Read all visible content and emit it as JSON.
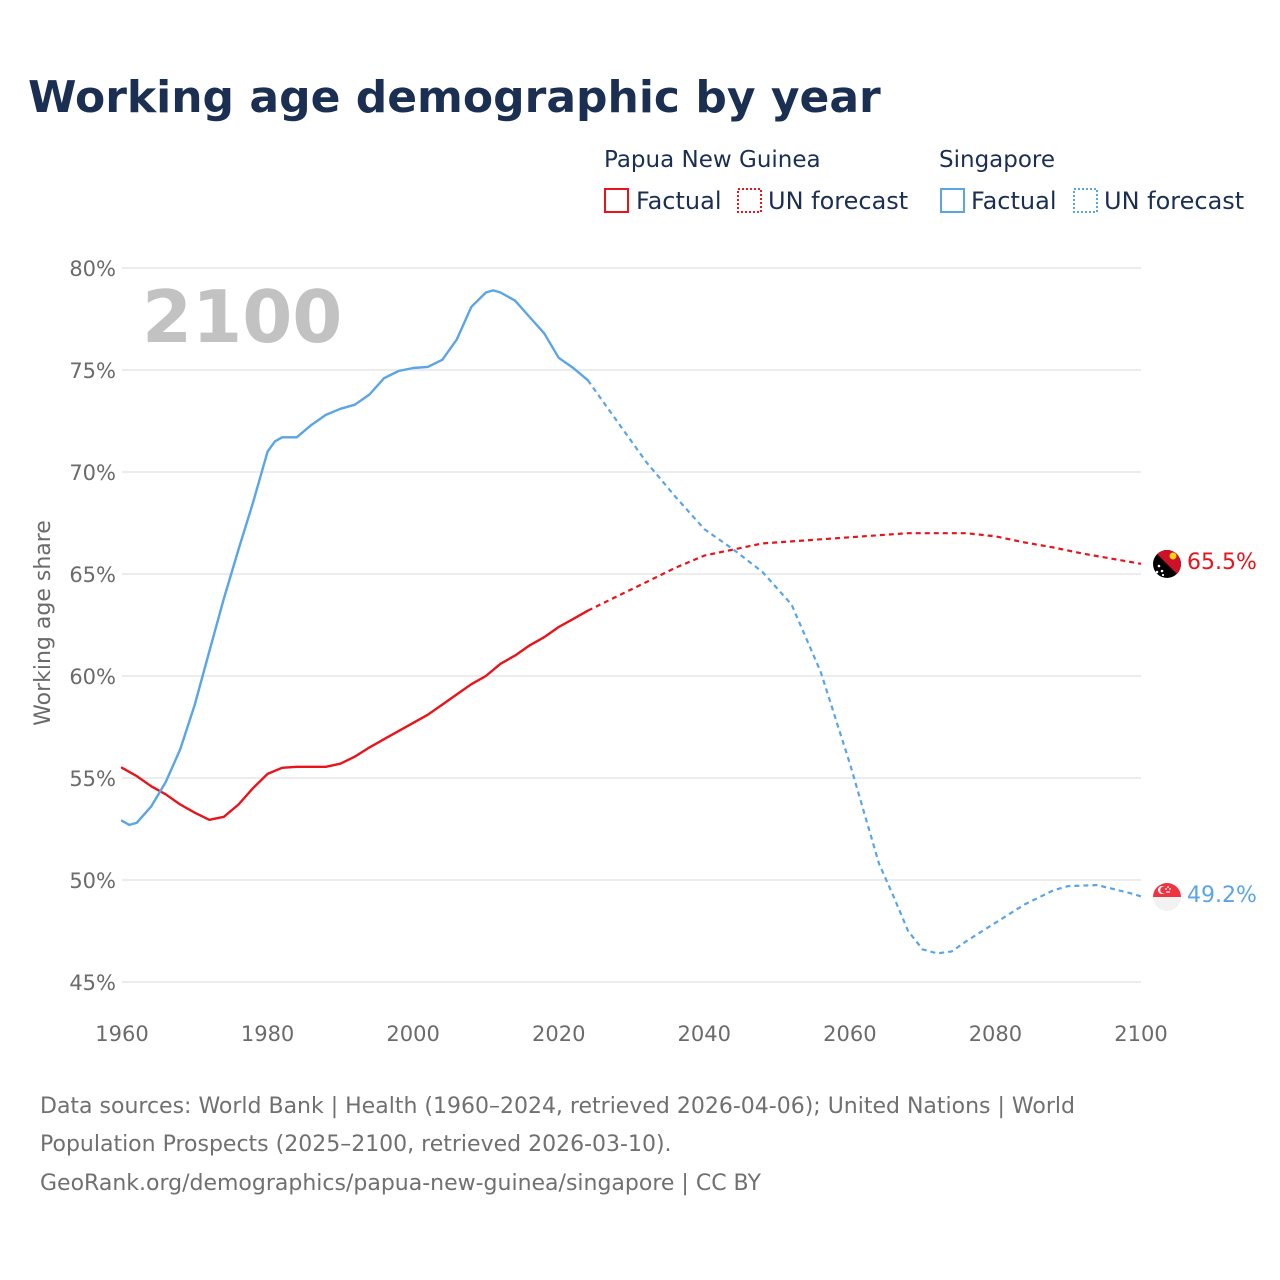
{
  "colors": {
    "png": "#e8141a",
    "sgp": "#5aa5e6",
    "title": "#1b2f52",
    "grid": "#e6e6e6"
  },
  "chart_data": {
    "type": "line",
    "title": "Working age demographic by year",
    "ylabel": "Working age share",
    "xlabel": "",
    "xlim": [
      1960,
      2100
    ],
    "ylim": [
      45,
      80
    ],
    "x_ticks": [
      "1960",
      "1980",
      "2000",
      "2020",
      "2040",
      "2060",
      "2080",
      "2100"
    ],
    "y_ticks": [
      "45%",
      "50%",
      "55%",
      "60%",
      "65%",
      "70%",
      "75%",
      "80%"
    ],
    "year_watermark": "2100",
    "legend": {
      "groups": [
        {
          "name": "Papua New Guinea",
          "factual": "Factual",
          "forecast": "UN forecast"
        },
        {
          "name": "Singapore",
          "factual": "Factual",
          "forecast": "UN forecast"
        }
      ]
    },
    "end_labels": {
      "png": "65.5%",
      "sgp": "49.2%"
    },
    "series": [
      {
        "name": "Papua New Guinea",
        "factual_years": [
          1960,
          1962,
          1964,
          1966,
          1968,
          1970,
          1972,
          1974,
          1976,
          1978,
          1980,
          1982,
          1984,
          1986,
          1988,
          1990,
          1992,
          1994,
          1996,
          1998,
          2000,
          2002,
          2004,
          2006,
          2008,
          2010,
          2012,
          2014,
          2016,
          2018,
          2020,
          2022,
          2024
        ],
        "factual_values": [
          55.5,
          55.1,
          54.6,
          54.2,
          53.7,
          53.3,
          52.95,
          53.1,
          53.7,
          54.5,
          55.2,
          55.5,
          55.55,
          55.55,
          55.55,
          55.7,
          56.05,
          56.5,
          56.9,
          57.3,
          57.7,
          58.1,
          58.6,
          59.1,
          59.6,
          60.0,
          60.6,
          61.0,
          61.5,
          61.9,
          62.4,
          62.8,
          63.2
        ],
        "forecast_years": [
          2024,
          2028,
          2032,
          2036,
          2040,
          2044,
          2048,
          2052,
          2056,
          2060,
          2064,
          2068,
          2072,
          2076,
          2080,
          2084,
          2088,
          2092,
          2096,
          2100
        ],
        "forecast_values": [
          63.2,
          63.9,
          64.6,
          65.3,
          65.9,
          66.2,
          66.5,
          66.6,
          66.7,
          66.8,
          66.9,
          67.0,
          67.0,
          67.0,
          66.85,
          66.55,
          66.3,
          66.0,
          65.75,
          65.5
        ]
      },
      {
        "name": "Singapore",
        "factual_years": [
          1960,
          1961,
          1962,
          1964,
          1966,
          1968,
          1970,
          1972,
          1974,
          1976,
          1978,
          1980,
          1981,
          1982,
          1983,
          1984,
          1986,
          1988,
          1990,
          1992,
          1994,
          1996,
          1998,
          2000,
          2002,
          2004,
          2006,
          2008,
          2010,
          2011,
          2012,
          2014,
          2016,
          2018,
          2020,
          2022,
          2024
        ],
        "factual_values": [
          52.9,
          52.7,
          52.8,
          53.6,
          54.8,
          56.4,
          58.6,
          61.2,
          63.8,
          66.2,
          68.5,
          71.0,
          71.5,
          71.7,
          71.7,
          71.7,
          72.3,
          72.8,
          73.1,
          73.3,
          73.8,
          74.6,
          74.95,
          75.1,
          75.15,
          75.5,
          76.5,
          78.1,
          78.8,
          78.9,
          78.8,
          78.4,
          77.6,
          76.8,
          75.6,
          75.1,
          74.5
        ],
        "forecast_years": [
          2024,
          2028,
          2032,
          2036,
          2040,
          2044,
          2048,
          2052,
          2056,
          2060,
          2064,
          2066,
          2068,
          2070,
          2072,
          2074,
          2076,
          2080,
          2084,
          2088,
          2090,
          2094,
          2098,
          2100
        ],
        "forecast_values": [
          74.5,
          72.5,
          70.5,
          68.8,
          67.2,
          66.2,
          65.1,
          63.5,
          60.2,
          55.7,
          50.8,
          49.2,
          47.5,
          46.6,
          46.4,
          46.5,
          47.0,
          47.9,
          48.8,
          49.5,
          49.7,
          49.75,
          49.4,
          49.2
        ]
      }
    ]
  },
  "footer": {
    "line1": "Data sources: World Bank | Health (1960–2024, retrieved 2026-04-06); United Nations | World",
    "line2": "Population Prospects (2025–2100, retrieved 2026-03-10).",
    "line3": "GeoRank.org/demographics/papua-new-guinea/singapore | CC BY"
  }
}
